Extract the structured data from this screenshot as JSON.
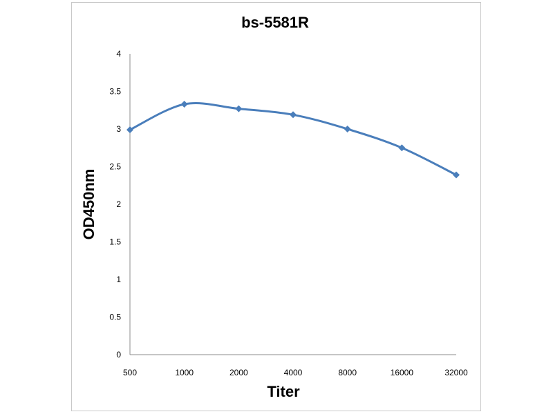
{
  "chart_data": {
    "type": "line",
    "title": "bs-5581R",
    "xlabel": "Titer",
    "ylabel": "OD450nm",
    "categories": [
      "500",
      "1000",
      "2000",
      "4000",
      "8000",
      "16000",
      "32000"
    ],
    "series": [
      {
        "values": [
          2.99,
          3.33,
          3.27,
          3.19,
          3.0,
          2.75,
          2.39
        ]
      }
    ],
    "ylim": [
      0,
      4
    ],
    "yticks": [
      "0",
      "0.5",
      "1",
      "1.5",
      "2",
      "2.5",
      "3",
      "3.5",
      "4"
    ],
    "grid": false,
    "line_style": "smoothed",
    "marker": "diamond",
    "series_color": "#4a7ebb"
  }
}
